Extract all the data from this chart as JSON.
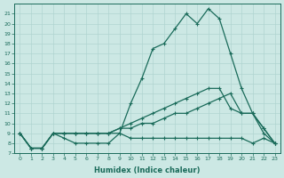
{
  "xlabel": "Humidex (Indice chaleur)",
  "xlim": [
    -0.5,
    23.5
  ],
  "ylim": [
    7,
    22
  ],
  "background_color": "#cce8e4",
  "grid_color": "#b0d4d0",
  "line_color": "#1a6b5a",
  "yticks": [
    7,
    8,
    9,
    10,
    11,
    12,
    13,
    14,
    15,
    16,
    17,
    18,
    19,
    20,
    21
  ],
  "xticks": [
    0,
    1,
    2,
    3,
    4,
    5,
    6,
    7,
    8,
    9,
    10,
    11,
    12,
    13,
    14,
    15,
    16,
    17,
    18,
    19,
    20,
    21,
    22,
    23
  ],
  "lines": [
    {
      "x": [
        0,
        1,
        2,
        3,
        4,
        5,
        6,
        7,
        8,
        9,
        10,
        11,
        12,
        13,
        14,
        15,
        16,
        17,
        18,
        19,
        20,
        21,
        22,
        23
      ],
      "y": [
        9.0,
        7.5,
        7.5,
        9.0,
        9.0,
        9.0,
        9.0,
        9.0,
        9.0,
        9.0,
        12.0,
        14.5,
        17.5,
        18.0,
        19.5,
        21.0,
        20.0,
        21.5,
        20.5,
        17.0,
        13.5,
        11.0,
        9.5,
        8.0
      ]
    },
    {
      "x": [
        0,
        1,
        2,
        3,
        4,
        5,
        6,
        7,
        8,
        9,
        10,
        11,
        12,
        13,
        14,
        15,
        16,
        17,
        18,
        19,
        20,
        21,
        22,
        23
      ],
      "y": [
        9.0,
        7.5,
        7.5,
        9.0,
        9.0,
        9.0,
        9.0,
        9.0,
        9.0,
        9.5,
        10.0,
        10.5,
        11.0,
        11.5,
        12.0,
        12.5,
        13.0,
        13.5,
        13.5,
        11.5,
        11.0,
        11.0,
        9.0,
        8.0
      ]
    },
    {
      "x": [
        0,
        1,
        2,
        3,
        4,
        5,
        6,
        7,
        8,
        9,
        10,
        11,
        12,
        13,
        14,
        15,
        16,
        17,
        18,
        19,
        20,
        21,
        22,
        23
      ],
      "y": [
        9.0,
        7.5,
        7.5,
        9.0,
        9.0,
        9.0,
        9.0,
        9.0,
        9.0,
        9.5,
        9.5,
        10.0,
        10.0,
        10.5,
        11.0,
        11.0,
        11.5,
        12.0,
        12.5,
        13.0,
        11.0,
        11.0,
        9.5,
        8.0
      ]
    },
    {
      "x": [
        0,
        1,
        2,
        3,
        4,
        5,
        6,
        7,
        8,
        9,
        10,
        11,
        12,
        13,
        14,
        15,
        16,
        17,
        18,
        19,
        20,
        21,
        22,
        23
      ],
      "y": [
        9.0,
        7.5,
        7.5,
        9.0,
        8.5,
        8.0,
        8.0,
        8.0,
        8.0,
        9.0,
        8.5,
        8.5,
        8.5,
        8.5,
        8.5,
        8.5,
        8.5,
        8.5,
        8.5,
        8.5,
        8.5,
        8.0,
        8.5,
        8.0
      ]
    }
  ]
}
